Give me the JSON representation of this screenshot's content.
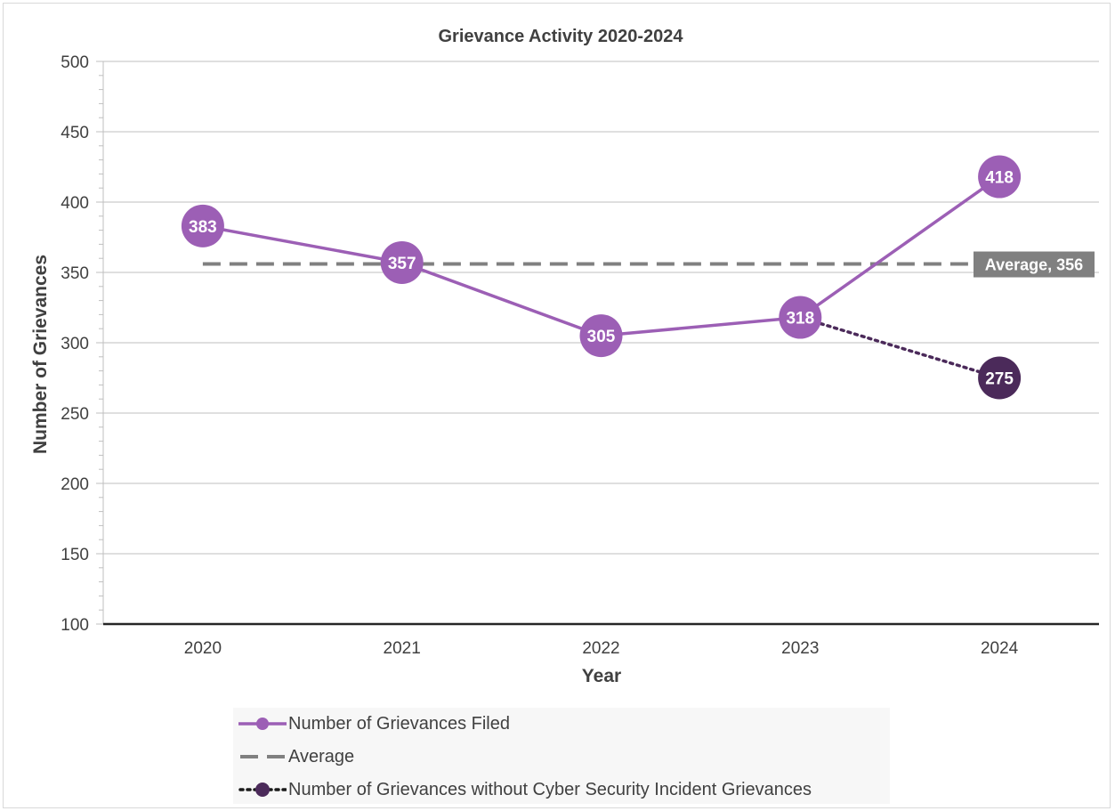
{
  "chart_data": {
    "type": "line",
    "title": "Grievance Activity 2020-2024",
    "xlabel": "Year",
    "ylabel": "Number of Grievances",
    "categories": [
      "2020",
      "2021",
      "2022",
      "2023",
      "2024"
    ],
    "ylim": [
      100,
      500
    ],
    "yticks": [
      100,
      150,
      200,
      250,
      300,
      350,
      400,
      450,
      500
    ],
    "grid": true,
    "series": [
      {
        "name": "Number of Grievances Filed",
        "values": [
          383,
          357,
          305,
          318,
          418
        ],
        "color": "#9c5fb5",
        "style": "solid",
        "labels": [
          "383",
          "357",
          "305",
          "318",
          "418"
        ]
      },
      {
        "name": "Average",
        "values": [
          356,
          356,
          356,
          356,
          356
        ],
        "color": "#808080",
        "style": "dashed"
      },
      {
        "name": "Number of Grievances without Cyber Security Incident Grievances",
        "values": [
          null,
          null,
          null,
          318,
          275
        ],
        "color": "#4b2a5a",
        "style": "dotted",
        "labels": [
          "275"
        ]
      }
    ],
    "annotations": [
      {
        "text": "Average, 356",
        "series": "Average",
        "value": 356
      }
    ],
    "legend_position": "bottom"
  }
}
